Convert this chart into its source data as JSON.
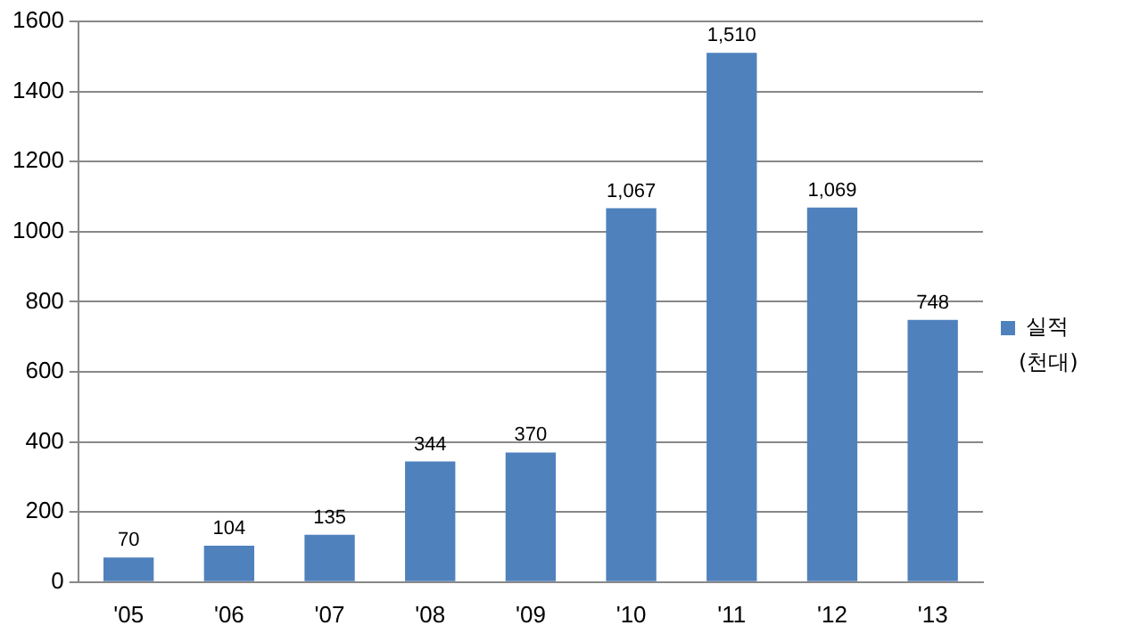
{
  "chart_data": {
    "type": "bar",
    "categories": [
      "'05",
      "'06",
      "'07",
      "'08",
      "'09",
      "'10",
      "'11",
      "'12",
      "'13"
    ],
    "series": [
      {
        "name": "실적",
        "color": "#4f81bd",
        "values": [
          70,
          104,
          135,
          344,
          370,
          1067,
          1510,
          1069,
          748
        ],
        "value_labels": [
          "70",
          "104",
          "135",
          "344",
          "370",
          "1,067",
          "1,510",
          "1,069",
          "748"
        ]
      }
    ],
    "ylim": [
      0,
      1600
    ],
    "yticks": [
      0,
      200,
      400,
      600,
      800,
      1000,
      1200,
      1400,
      1600
    ],
    "grid": "y",
    "legend": "right",
    "annotations": [
      "(천대)"
    ]
  }
}
